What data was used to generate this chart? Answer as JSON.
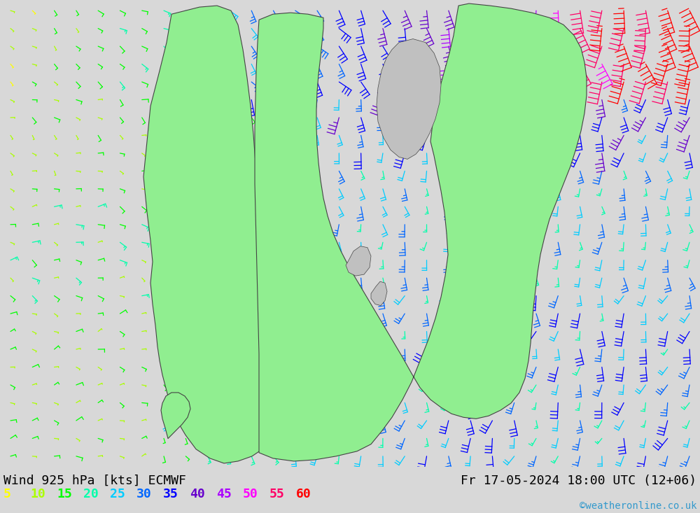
{
  "title_left": "Wind 925 hPa [kts] ECMWF",
  "title_right": "Fr 17-05-2024 18:00 UTC (12+06)",
  "watermark": "©weatheronline.co.uk",
  "colorbar_values": [
    5,
    10,
    15,
    20,
    25,
    30,
    35,
    40,
    45,
    50,
    55,
    60
  ],
  "colorbar_colors": [
    "#ffff00",
    "#aaff00",
    "#00ff00",
    "#00ffaa",
    "#00ccff",
    "#0066ff",
    "#0000ff",
    "#6600cc",
    "#aa00ff",
    "#ff00ff",
    "#ff0066",
    "#ff0000"
  ],
  "bg_color": "#d8d8d8",
  "land_color": "#90ee90",
  "sea_color": "#c0c0c0",
  "border_color": "#444444",
  "title_fontsize": 13,
  "colorbar_fontsize": 13,
  "watermark_fontsize": 10,
  "fig_width": 10.0,
  "fig_height": 7.33
}
